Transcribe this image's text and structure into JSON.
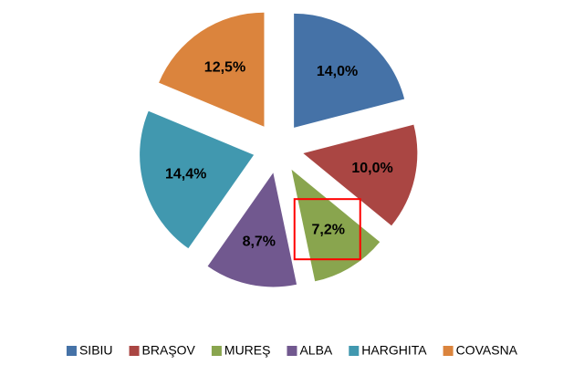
{
  "chart_data": {
    "type": "pie",
    "categories": [
      "SIBIU",
      "BRAŞOV",
      "MUREŞ",
      "ALBA",
      "HARGHITA",
      "COVASNA"
    ],
    "values": [
      14.0,
      10.0,
      7.2,
      8.7,
      14.4,
      12.5
    ],
    "value_labels": [
      "14,0%",
      "10,0%",
      "7,2%",
      "8,7%",
      "14,4%",
      "12,5%"
    ],
    "colors": [
      "#4572a7",
      "#aa4643",
      "#89a54e",
      "#71588f",
      "#4198af",
      "#db843d"
    ],
    "legend": "bottom"
  }
}
